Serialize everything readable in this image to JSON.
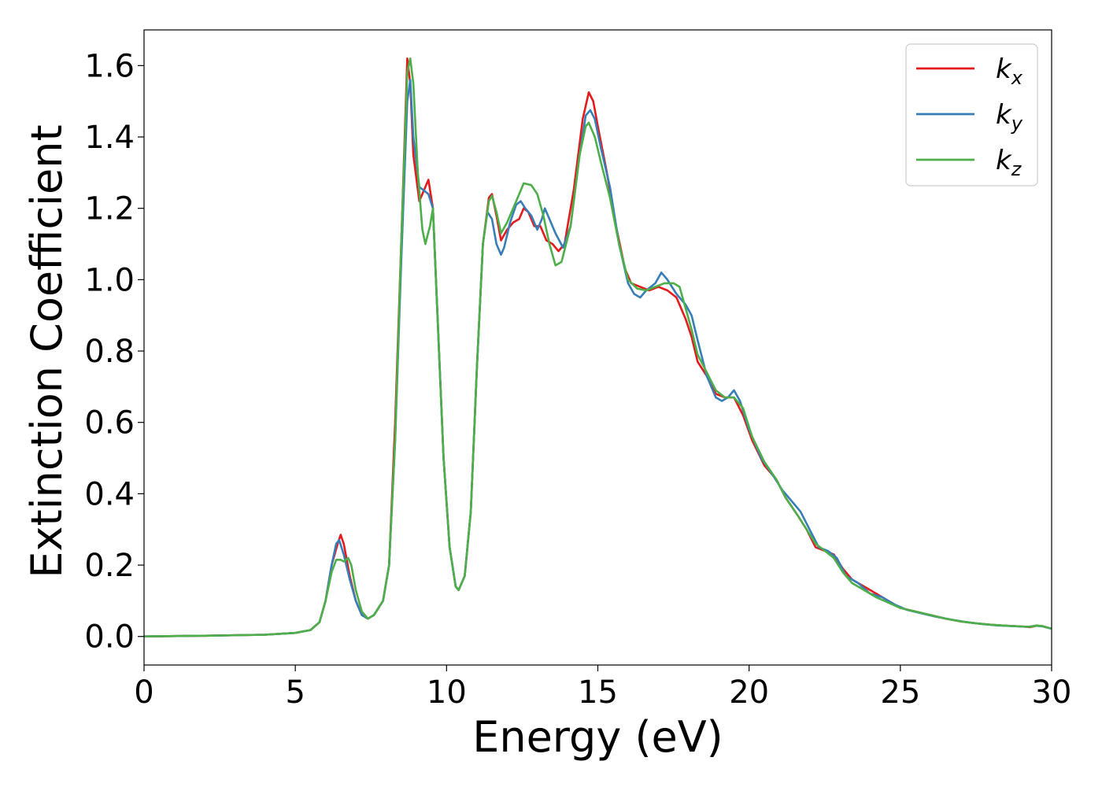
{
  "chart_data": {
    "type": "line",
    "title": "",
    "xlabel": "Energy (eV)",
    "ylabel": "Extinction Coefficient",
    "xlim": [
      0,
      30
    ],
    "ylim": [
      -0.08,
      1.7
    ],
    "xticks": [
      0,
      5,
      10,
      15,
      20,
      25,
      30
    ],
    "yticks": [
      0.0,
      0.2,
      0.4,
      0.6,
      0.8,
      1.0,
      1.2,
      1.4,
      1.6
    ],
    "xtick_labels": [
      "0",
      "5",
      "10",
      "15",
      "20",
      "25",
      "30"
    ],
    "ytick_labels": [
      "0.0",
      "0.2",
      "0.4",
      "0.6",
      "0.8",
      "1.0",
      "1.2",
      "1.4",
      "1.6"
    ],
    "grid": false,
    "legend_position": "top-right",
    "series": [
      {
        "name": "k_x",
        "label_base": "k",
        "label_sub": "x",
        "color": "#e41a1c",
        "points": [
          [
            0,
            0.0
          ],
          [
            2,
            0.002
          ],
          [
            4,
            0.005
          ],
          [
            5,
            0.01
          ],
          [
            5.5,
            0.018
          ],
          [
            5.8,
            0.04
          ],
          [
            6.0,
            0.1
          ],
          [
            6.2,
            0.2
          ],
          [
            6.4,
            0.26
          ],
          [
            6.5,
            0.285
          ],
          [
            6.6,
            0.26
          ],
          [
            6.8,
            0.17
          ],
          [
            7.0,
            0.1
          ],
          [
            7.2,
            0.06
          ],
          [
            7.4,
            0.05
          ],
          [
            7.6,
            0.06
          ],
          [
            7.9,
            0.1
          ],
          [
            8.1,
            0.2
          ],
          [
            8.3,
            0.6
          ],
          [
            8.5,
            1.1
          ],
          [
            8.7,
            1.62
          ],
          [
            8.8,
            1.55
          ],
          [
            8.9,
            1.35
          ],
          [
            9.1,
            1.22
          ],
          [
            9.25,
            1.25
          ],
          [
            9.4,
            1.28
          ],
          [
            9.55,
            1.2
          ],
          [
            9.7,
            0.9
          ],
          [
            9.9,
            0.5
          ],
          [
            10.1,
            0.25
          ],
          [
            10.3,
            0.14
          ],
          [
            10.4,
            0.13
          ],
          [
            10.6,
            0.17
          ],
          [
            10.8,
            0.35
          ],
          [
            11.0,
            0.75
          ],
          [
            11.2,
            1.1
          ],
          [
            11.4,
            1.23
          ],
          [
            11.5,
            1.24
          ],
          [
            11.65,
            1.18
          ],
          [
            11.8,
            1.11
          ],
          [
            12.0,
            1.14
          ],
          [
            12.2,
            1.16
          ],
          [
            12.4,
            1.17
          ],
          [
            12.55,
            1.2
          ],
          [
            12.7,
            1.19
          ],
          [
            12.9,
            1.15
          ],
          [
            13.1,
            1.15
          ],
          [
            13.3,
            1.11
          ],
          [
            13.5,
            1.1
          ],
          [
            13.7,
            1.08
          ],
          [
            13.9,
            1.1
          ],
          [
            14.2,
            1.25
          ],
          [
            14.5,
            1.45
          ],
          [
            14.7,
            1.525
          ],
          [
            14.85,
            1.5
          ],
          [
            15.0,
            1.43
          ],
          [
            15.3,
            1.3
          ],
          [
            15.6,
            1.15
          ],
          [
            15.9,
            1.03
          ],
          [
            16.1,
            0.99
          ],
          [
            16.4,
            0.98
          ],
          [
            16.7,
            0.97
          ],
          [
            17.0,
            0.98
          ],
          [
            17.3,
            0.97
          ],
          [
            17.6,
            0.95
          ],
          [
            17.9,
            0.89
          ],
          [
            18.1,
            0.84
          ],
          [
            18.3,
            0.77
          ],
          [
            18.6,
            0.73
          ],
          [
            18.9,
            0.68
          ],
          [
            19.2,
            0.67
          ],
          [
            19.5,
            0.67
          ],
          [
            19.8,
            0.62
          ],
          [
            20.1,
            0.55
          ],
          [
            20.5,
            0.48
          ],
          [
            20.9,
            0.44
          ],
          [
            21.2,
            0.39
          ],
          [
            21.6,
            0.34
          ],
          [
            21.9,
            0.3
          ],
          [
            22.2,
            0.25
          ],
          [
            22.5,
            0.24
          ],
          [
            22.8,
            0.23
          ],
          [
            23.1,
            0.19
          ],
          [
            23.4,
            0.16
          ],
          [
            23.8,
            0.14
          ],
          [
            24.2,
            0.12
          ],
          [
            24.6,
            0.1
          ],
          [
            25.0,
            0.08
          ],
          [
            25.5,
            0.07
          ],
          [
            26.0,
            0.06
          ],
          [
            26.5,
            0.05
          ],
          [
            27.0,
            0.042
          ],
          [
            27.5,
            0.037
          ],
          [
            28.0,
            0.033
          ],
          [
            28.5,
            0.03
          ],
          [
            29.0,
            0.028
          ],
          [
            29.3,
            0.026
          ],
          [
            29.5,
            0.03
          ],
          [
            29.7,
            0.029
          ],
          [
            30.0,
            0.022
          ]
        ]
      },
      {
        "name": "k_y",
        "label_base": "k",
        "label_sub": "y",
        "color": "#377eb8",
        "points": [
          [
            0,
            0.0
          ],
          [
            2,
            0.002
          ],
          [
            4,
            0.005
          ],
          [
            5,
            0.01
          ],
          [
            5.5,
            0.018
          ],
          [
            5.8,
            0.04
          ],
          [
            6.0,
            0.1
          ],
          [
            6.2,
            0.2
          ],
          [
            6.35,
            0.26
          ],
          [
            6.45,
            0.27
          ],
          [
            6.6,
            0.23
          ],
          [
            6.8,
            0.16
          ],
          [
            7.0,
            0.1
          ],
          [
            7.2,
            0.06
          ],
          [
            7.4,
            0.05
          ],
          [
            7.6,
            0.06
          ],
          [
            7.9,
            0.1
          ],
          [
            8.1,
            0.2
          ],
          [
            8.3,
            0.55
          ],
          [
            8.5,
            1.05
          ],
          [
            8.7,
            1.5
          ],
          [
            8.8,
            1.56
          ],
          [
            8.9,
            1.4
          ],
          [
            9.1,
            1.26
          ],
          [
            9.25,
            1.25
          ],
          [
            9.4,
            1.24
          ],
          [
            9.55,
            1.2
          ],
          [
            9.7,
            0.9
          ],
          [
            9.9,
            0.5
          ],
          [
            10.1,
            0.25
          ],
          [
            10.3,
            0.14
          ],
          [
            10.4,
            0.13
          ],
          [
            10.6,
            0.17
          ],
          [
            10.8,
            0.35
          ],
          [
            11.0,
            0.75
          ],
          [
            11.2,
            1.1
          ],
          [
            11.35,
            1.19
          ],
          [
            11.5,
            1.17
          ],
          [
            11.65,
            1.1
          ],
          [
            11.8,
            1.07
          ],
          [
            11.9,
            1.09
          ],
          [
            12.1,
            1.16
          ],
          [
            12.3,
            1.21
          ],
          [
            12.45,
            1.22
          ],
          [
            12.6,
            1.2
          ],
          [
            12.8,
            1.18
          ],
          [
            13.0,
            1.14
          ],
          [
            13.15,
            1.17
          ],
          [
            13.25,
            1.2
          ],
          [
            13.4,
            1.17
          ],
          [
            13.6,
            1.13
          ],
          [
            13.85,
            1.09
          ],
          [
            14.1,
            1.15
          ],
          [
            14.4,
            1.35
          ],
          [
            14.6,
            1.46
          ],
          [
            14.75,
            1.475
          ],
          [
            14.9,
            1.45
          ],
          [
            15.1,
            1.37
          ],
          [
            15.4,
            1.26
          ],
          [
            15.7,
            1.1
          ],
          [
            16.0,
            0.99
          ],
          [
            16.2,
            0.96
          ],
          [
            16.4,
            0.95
          ],
          [
            16.6,
            0.97
          ],
          [
            16.9,
            0.99
          ],
          [
            17.1,
            1.02
          ],
          [
            17.3,
            1.0
          ],
          [
            17.6,
            0.96
          ],
          [
            17.9,
            0.93
          ],
          [
            18.1,
            0.9
          ],
          [
            18.3,
            0.83
          ],
          [
            18.6,
            0.73
          ],
          [
            18.9,
            0.67
          ],
          [
            19.1,
            0.66
          ],
          [
            19.3,
            0.67
          ],
          [
            19.5,
            0.69
          ],
          [
            19.7,
            0.66
          ],
          [
            20.0,
            0.58
          ],
          [
            20.4,
            0.5
          ],
          [
            20.8,
            0.45
          ],
          [
            21.1,
            0.41
          ],
          [
            21.4,
            0.38
          ],
          [
            21.7,
            0.35
          ],
          [
            22.0,
            0.3
          ],
          [
            22.3,
            0.25
          ],
          [
            22.6,
            0.24
          ],
          [
            22.9,
            0.22
          ],
          [
            23.2,
            0.17
          ],
          [
            23.6,
            0.15
          ],
          [
            24.0,
            0.12
          ],
          [
            24.4,
            0.11
          ],
          [
            24.8,
            0.09
          ],
          [
            25.2,
            0.075
          ],
          [
            25.7,
            0.065
          ],
          [
            26.2,
            0.055
          ],
          [
            26.7,
            0.047
          ],
          [
            27.2,
            0.04
          ],
          [
            27.7,
            0.035
          ],
          [
            28.2,
            0.031
          ],
          [
            28.7,
            0.029
          ],
          [
            29.2,
            0.027
          ],
          [
            29.5,
            0.03
          ],
          [
            29.7,
            0.028
          ],
          [
            30.0,
            0.022
          ]
        ]
      },
      {
        "name": "k_z",
        "label_base": "k",
        "label_sub": "z",
        "color": "#4daf4a",
        "points": [
          [
            0,
            0.0
          ],
          [
            2,
            0.002
          ],
          [
            4,
            0.005
          ],
          [
            5,
            0.01
          ],
          [
            5.5,
            0.018
          ],
          [
            5.8,
            0.04
          ],
          [
            6.0,
            0.1
          ],
          [
            6.2,
            0.18
          ],
          [
            6.35,
            0.215
          ],
          [
            6.5,
            0.215
          ],
          [
            6.6,
            0.21
          ],
          [
            6.75,
            0.22
          ],
          [
            6.85,
            0.2
          ],
          [
            7.0,
            0.13
          ],
          [
            7.2,
            0.07
          ],
          [
            7.4,
            0.05
          ],
          [
            7.6,
            0.06
          ],
          [
            7.9,
            0.1
          ],
          [
            8.1,
            0.2
          ],
          [
            8.3,
            0.55
          ],
          [
            8.5,
            1.1
          ],
          [
            8.7,
            1.58
          ],
          [
            8.8,
            1.62
          ],
          [
            8.9,
            1.55
          ],
          [
            9.05,
            1.3
          ],
          [
            9.2,
            1.14
          ],
          [
            9.3,
            1.1
          ],
          [
            9.45,
            1.15
          ],
          [
            9.55,
            1.2
          ],
          [
            9.7,
            0.9
          ],
          [
            9.9,
            0.5
          ],
          [
            10.1,
            0.25
          ],
          [
            10.3,
            0.14
          ],
          [
            10.4,
            0.13
          ],
          [
            10.6,
            0.17
          ],
          [
            10.8,
            0.35
          ],
          [
            11.0,
            0.75
          ],
          [
            11.2,
            1.1
          ],
          [
            11.4,
            1.22
          ],
          [
            11.5,
            1.235
          ],
          [
            11.65,
            1.19
          ],
          [
            11.8,
            1.13
          ],
          [
            12.0,
            1.16
          ],
          [
            12.2,
            1.2
          ],
          [
            12.4,
            1.24
          ],
          [
            12.55,
            1.27
          ],
          [
            12.8,
            1.265
          ],
          [
            13.0,
            1.24
          ],
          [
            13.2,
            1.18
          ],
          [
            13.4,
            1.1
          ],
          [
            13.6,
            1.04
          ],
          [
            13.8,
            1.05
          ],
          [
            14.1,
            1.15
          ],
          [
            14.4,
            1.35
          ],
          [
            14.6,
            1.43
          ],
          [
            14.7,
            1.44
          ],
          [
            14.9,
            1.4
          ],
          [
            15.1,
            1.33
          ],
          [
            15.4,
            1.23
          ],
          [
            15.7,
            1.1
          ],
          [
            16.0,
            1.0
          ],
          [
            16.3,
            0.975
          ],
          [
            16.6,
            0.97
          ],
          [
            16.9,
            0.98
          ],
          [
            17.2,
            0.99
          ],
          [
            17.5,
            0.99
          ],
          [
            17.7,
            0.98
          ],
          [
            17.9,
            0.92
          ],
          [
            18.1,
            0.86
          ],
          [
            18.3,
            0.79
          ],
          [
            18.6,
            0.74
          ],
          [
            18.9,
            0.69
          ],
          [
            19.2,
            0.67
          ],
          [
            19.5,
            0.67
          ],
          [
            19.8,
            0.64
          ],
          [
            20.1,
            0.56
          ],
          [
            20.5,
            0.49
          ],
          [
            20.9,
            0.44
          ],
          [
            21.2,
            0.39
          ],
          [
            21.6,
            0.34
          ],
          [
            21.9,
            0.3
          ],
          [
            22.2,
            0.26
          ],
          [
            22.5,
            0.24
          ],
          [
            22.8,
            0.22
          ],
          [
            23.1,
            0.18
          ],
          [
            23.4,
            0.15
          ],
          [
            23.8,
            0.13
          ],
          [
            24.2,
            0.11
          ],
          [
            24.6,
            0.095
          ],
          [
            25.0,
            0.08
          ],
          [
            25.5,
            0.07
          ],
          [
            26.0,
            0.06
          ],
          [
            26.5,
            0.05
          ],
          [
            27.0,
            0.042
          ],
          [
            27.5,
            0.037
          ],
          [
            28.0,
            0.033
          ],
          [
            28.5,
            0.03
          ],
          [
            29.0,
            0.028
          ],
          [
            29.3,
            0.027
          ],
          [
            29.5,
            0.031
          ],
          [
            29.7,
            0.029
          ],
          [
            30.0,
            0.022
          ]
        ]
      }
    ]
  }
}
